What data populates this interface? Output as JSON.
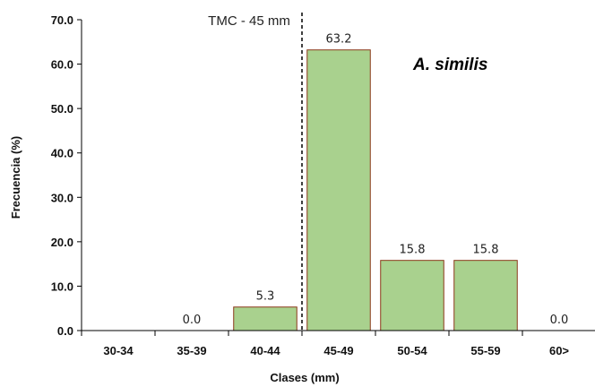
{
  "chart_data": {
    "type": "bar",
    "categories": [
      "30-34",
      "35-39",
      "40-44",
      "45-49",
      "50-54",
      "55-59",
      "60>"
    ],
    "values": [
      null,
      0.0,
      5.3,
      63.2,
      15.8,
      15.8,
      0.0
    ],
    "data_labels": [
      "",
      "0.0",
      "5.3",
      "63.2",
      "15.8",
      "15.8",
      "0.0"
    ],
    "xlabel": "Clases (mm)",
    "ylabel": "Frecuencia (%)",
    "ylim": [
      0,
      70
    ],
    "yticks": [
      "0.0",
      "10.0",
      "20.0",
      "30.0",
      "40.0",
      "50.0",
      "60.0",
      "70.0"
    ],
    "reference_line": {
      "x": 45,
      "label": "TMC - 45 mm"
    },
    "annotation": "A. similis",
    "grid": false,
    "bar_color": "#a9d18e",
    "bar_edge_color": "#8b3a1a"
  }
}
